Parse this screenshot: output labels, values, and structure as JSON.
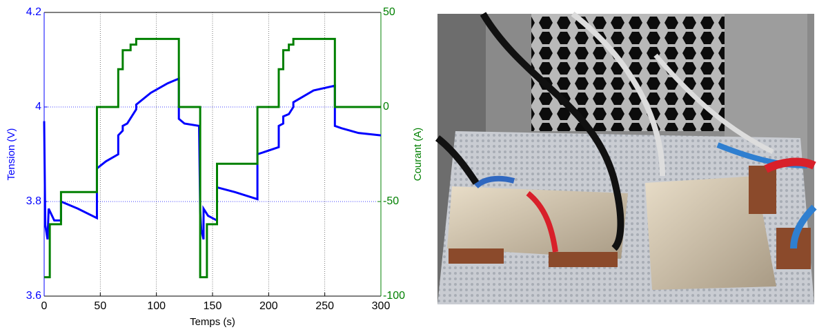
{
  "chart_data": {
    "type": "line",
    "step": "post",
    "x_label": "Temps (s)",
    "y_label": "Tension (V)",
    "y2_label": "Courant (A)",
    "xlim": [
      0,
      300
    ],
    "xticks": [
      0,
      50,
      100,
      150,
      200,
      250,
      300
    ],
    "ylim": [
      3.6,
      4.2
    ],
    "yticks": [
      3.6,
      3.8,
      4,
      4.2
    ],
    "y2lim": [
      -100,
      50
    ],
    "y2ticks": [
      -100,
      -50,
      0,
      50
    ],
    "grid": true,
    "series": [
      {
        "name": "Tension",
        "color": "#0000ff",
        "axis": "y",
        "step": false,
        "x": [
          0,
          1,
          3,
          4,
          7,
          9,
          15,
          15,
          30,
          47,
          47,
          55,
          66,
          66,
          70,
          70,
          74,
          82,
          82,
          95,
          110,
          120,
          120,
          125,
          138,
          139,
          140,
          142,
          142,
          146,
          154,
          154,
          170,
          190,
          190,
          209,
          209,
          213,
          213,
          218,
          222,
          222,
          240,
          259,
          259,
          265,
          280,
          300
        ],
        "values": [
          3.97,
          3.75,
          3.72,
          3.785,
          3.77,
          3.76,
          3.76,
          3.8,
          3.785,
          3.765,
          3.87,
          3.885,
          3.9,
          3.94,
          3.95,
          3.96,
          3.965,
          3.995,
          4.005,
          4.03,
          4.05,
          4.06,
          3.975,
          3.965,
          3.96,
          3.78,
          3.74,
          3.72,
          3.785,
          3.77,
          3.76,
          3.83,
          3.82,
          3.805,
          3.9,
          3.915,
          3.96,
          3.965,
          3.98,
          3.985,
          4.0,
          4.01,
          4.035,
          4.045,
          3.96,
          3.955,
          3.945,
          3.94
        ]
      },
      {
        "name": "Courant",
        "color": "#008000",
        "axis": "y2",
        "step": true,
        "x": [
          0,
          5,
          15,
          47,
          66,
          70,
          77,
          82,
          120,
          139,
          145,
          154,
          190,
          209,
          213,
          218,
          222,
          259,
          300
        ],
        "values": [
          -90,
          -62,
          -45,
          0,
          20,
          30,
          33,
          36,
          0,
          -90,
          -62,
          -30,
          0,
          20,
          30,
          33,
          36,
          0,
          0
        ]
      }
    ]
  }
}
